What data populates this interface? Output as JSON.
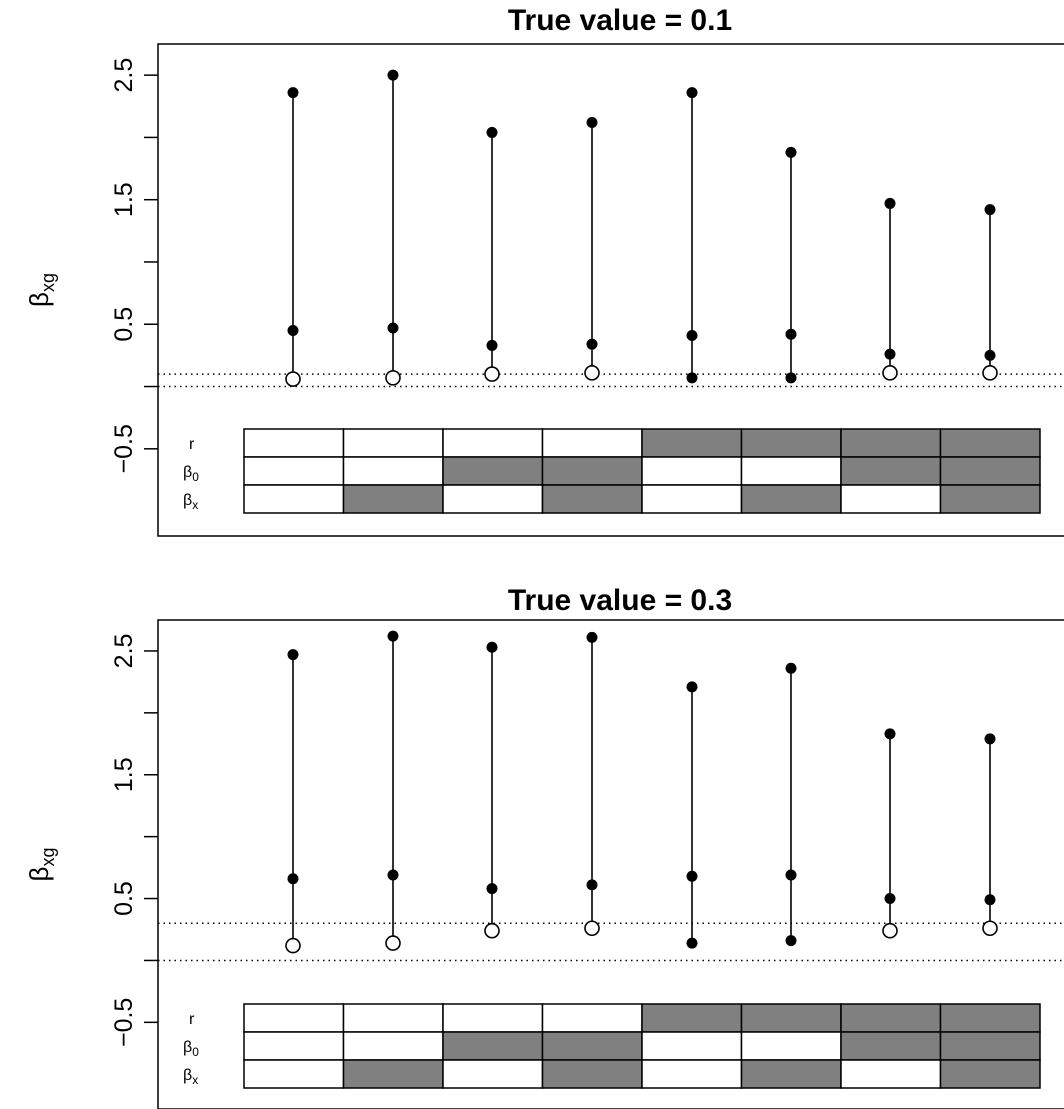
{
  "chart_data": [
    {
      "type": "interval",
      "title": "True value = 0.1",
      "ylabel": "β_xg",
      "ylabel_main": "β",
      "ylabel_sub": "xg",
      "ylim": [
        -1.2,
        2.75
      ],
      "yticks": [
        -0.5,
        0.5,
        1.5,
        2.5
      ],
      "ytick_labels": [
        "−0.5",
        "0.5",
        "1.5",
        "2.5"
      ],
      "reference_lines": [
        0.1,
        0.0
      ],
      "intervals": [
        {
          "upper": 2.36,
          "middle": 0.45,
          "lower": 0.06,
          "lower_marker": "open"
        },
        {
          "upper": 2.5,
          "middle": 0.47,
          "lower": 0.07,
          "lower_marker": "open"
        },
        {
          "upper": 2.04,
          "middle": 0.33,
          "lower": 0.1,
          "lower_marker": "open"
        },
        {
          "upper": 2.12,
          "middle": 0.34,
          "lower": 0.11,
          "lower_marker": "open"
        },
        {
          "upper": 2.36,
          "middle": 0.41,
          "lower": 0.07,
          "lower_marker": "filled"
        },
        {
          "upper": 1.88,
          "middle": 0.42,
          "lower": 0.07,
          "lower_marker": "filled"
        },
        {
          "upper": 1.47,
          "middle": 0.26,
          "lower": 0.11,
          "lower_marker": "open"
        },
        {
          "upper": 1.42,
          "middle": 0.25,
          "lower": 0.11,
          "lower_marker": "open"
        }
      ],
      "design_rows": [
        {
          "label_main": "r",
          "label_sub": "",
          "shaded": [
            false,
            false,
            false,
            false,
            true,
            true,
            true,
            true
          ]
        },
        {
          "label_main": "β",
          "label_sub": "0",
          "shaded": [
            false,
            false,
            true,
            true,
            false,
            false,
            true,
            true
          ]
        },
        {
          "label_main": "β",
          "label_sub": "x",
          "shaded": [
            false,
            true,
            false,
            true,
            false,
            true,
            false,
            true
          ]
        }
      ]
    },
    {
      "type": "interval",
      "title": "True value = 0.3",
      "ylabel": "β_xg",
      "ylabel_main": "β",
      "ylabel_sub": "xg",
      "ylim": [
        -1.2,
        2.75
      ],
      "yticks": [
        -0.5,
        0.5,
        1.5,
        2.5
      ],
      "ytick_labels": [
        "−0.5",
        "0.5",
        "1.5",
        "2.5"
      ],
      "reference_lines": [
        0.3,
        0.0
      ],
      "intervals": [
        {
          "upper": 2.47,
          "middle": 0.66,
          "lower": 0.12,
          "lower_marker": "open"
        },
        {
          "upper": 2.62,
          "middle": 0.69,
          "lower": 0.14,
          "lower_marker": "open"
        },
        {
          "upper": 2.53,
          "middle": 0.58,
          "lower": 0.24,
          "lower_marker": "open"
        },
        {
          "upper": 2.61,
          "middle": 0.61,
          "lower": 0.26,
          "lower_marker": "open"
        },
        {
          "upper": 2.21,
          "middle": 0.68,
          "lower": 0.14,
          "lower_marker": "filled"
        },
        {
          "upper": 2.36,
          "middle": 0.69,
          "lower": 0.16,
          "lower_marker": "filled"
        },
        {
          "upper": 1.83,
          "middle": 0.5,
          "lower": 0.24,
          "lower_marker": "open"
        },
        {
          "upper": 1.79,
          "middle": 0.49,
          "lower": 0.26,
          "lower_marker": "open"
        }
      ],
      "design_rows": [
        {
          "label_main": "r",
          "label_sub": "",
          "shaded": [
            false,
            false,
            false,
            false,
            true,
            true,
            true,
            true
          ]
        },
        {
          "label_main": "β",
          "label_sub": "0",
          "shaded": [
            false,
            false,
            true,
            true,
            false,
            false,
            true,
            true
          ]
        },
        {
          "label_main": "β",
          "label_sub": "x",
          "shaded": [
            false,
            true,
            false,
            true,
            false,
            true,
            false,
            true
          ]
        }
      ]
    }
  ],
  "colors": {
    "shaded_cell": "#808080",
    "unshaded_cell": "#ffffff",
    "ink": "#000000"
  }
}
